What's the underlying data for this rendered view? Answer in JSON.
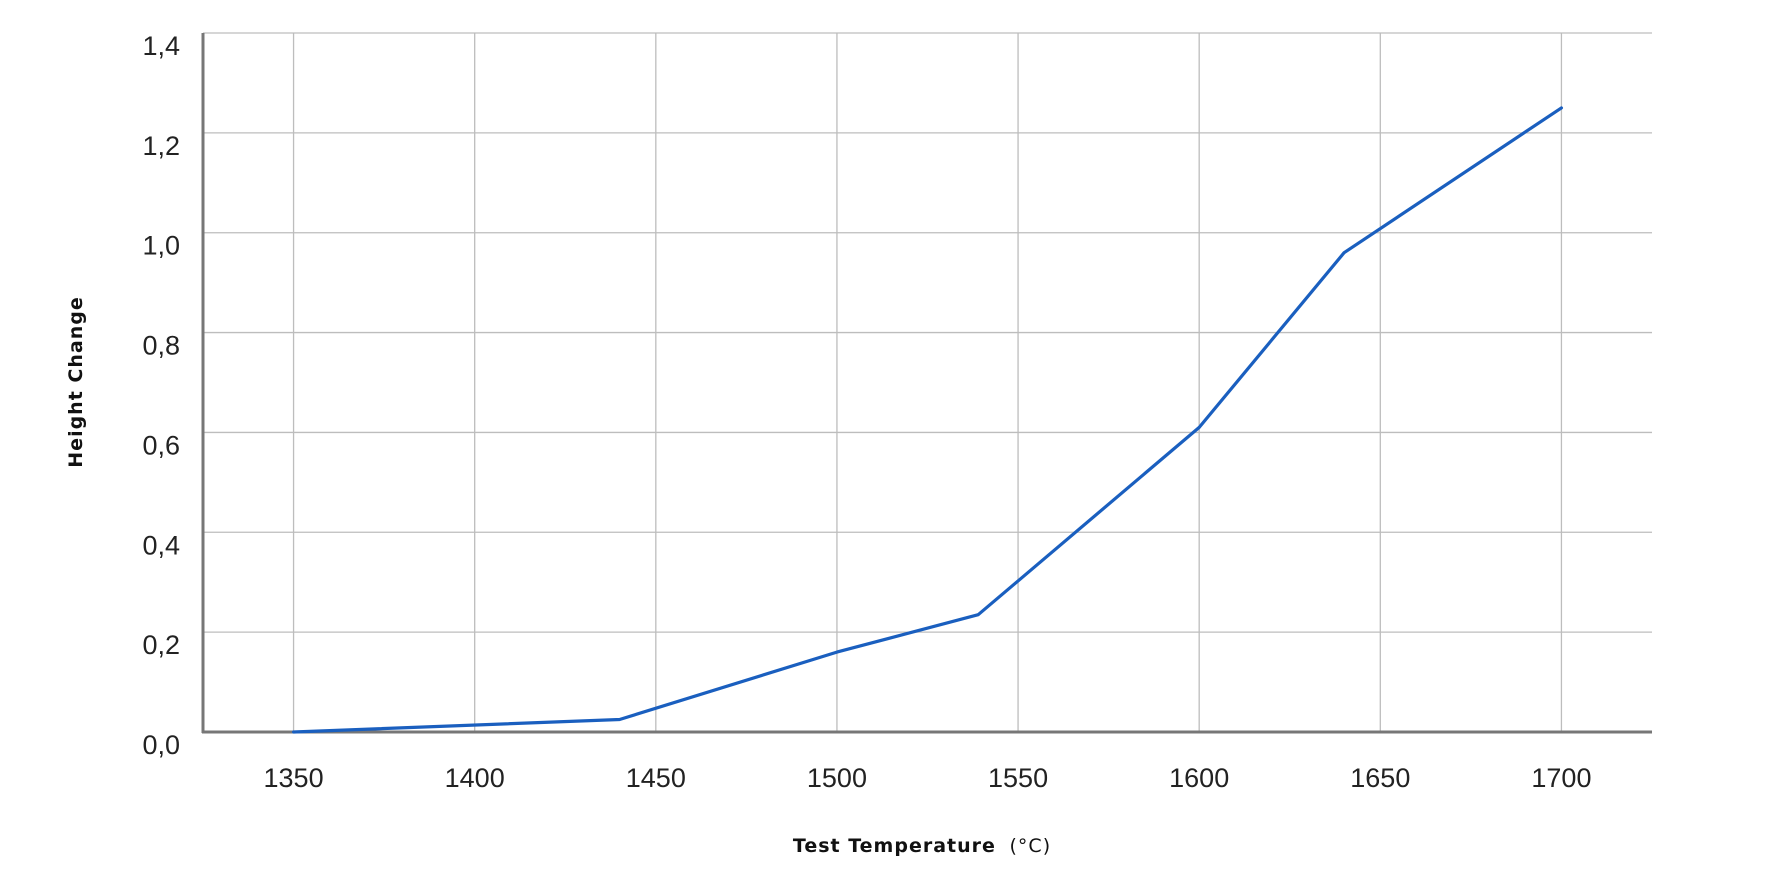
{
  "chart_data": {
    "type": "line",
    "xlabel": "Test Temperature",
    "xlabel_unit": "(°C)",
    "ylabel": "Height Change",
    "xlim": [
      1325,
      1725
    ],
    "ylim": [
      0,
      1.4
    ],
    "x_ticks": [
      1350,
      1400,
      1450,
      1500,
      1550,
      1600,
      1650,
      1700
    ],
    "x_tick_labels": [
      "1350",
      "1400",
      "1450",
      "1500",
      "1550",
      "1600",
      "1650",
      "1700"
    ],
    "y_ticks": [
      0,
      0.2,
      0.4,
      0.6,
      0.8,
      1.0,
      1.2,
      1.4
    ],
    "y_tick_labels": [
      "0,0",
      "0,2",
      "0,4",
      "0,6",
      "0,8",
      "1,0",
      "1,2",
      "1,4"
    ],
    "grid": true,
    "legend": "none",
    "series": [
      {
        "color": "#1a5fbf",
        "x": [
          1350,
          1440,
          1500,
          1539,
          1600,
          1640,
          1700
        ],
        "y": [
          0.0,
          0.025,
          0.16,
          0.235,
          0.61,
          0.96,
          1.25
        ]
      }
    ]
  }
}
